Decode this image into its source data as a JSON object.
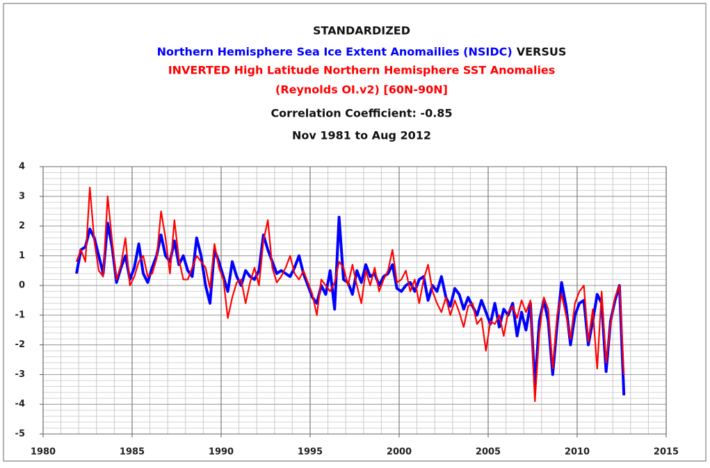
{
  "chart_data": {
    "type": "line",
    "title": "STANDARDIZED",
    "title_suffix": "VERSUS",
    "title_line": "(Reynolds OI.v2) [60N-90N]",
    "annotation": "Correlation Coefficient:  -0.85",
    "subtitle": "Nov 1981 to Aug 2012",
    "xlim": [
      1980,
      2015
    ],
    "xticks": [
      1980,
      1985,
      1990,
      1995,
      2000,
      2005,
      2010,
      2015
    ],
    "ylim": [
      -5,
      4
    ],
    "yticks": [
      -5,
      -4,
      -3,
      -2,
      -1,
      0,
      1,
      2,
      3,
      4
    ],
    "grid": true,
    "x": [
      1981.875,
      1982.125,
      1982.375,
      1982.625,
      1982.875,
      1983.125,
      1983.375,
      1983.625,
      1983.875,
      1984.125,
      1984.375,
      1984.625,
      1984.875,
      1985.125,
      1985.375,
      1985.625,
      1985.875,
      1986.125,
      1986.375,
      1986.625,
      1986.875,
      1987.125,
      1987.375,
      1987.625,
      1987.875,
      1988.125,
      1988.375,
      1988.625,
      1988.875,
      1989.125,
      1989.375,
      1989.625,
      1989.875,
      1990.125,
      1990.375,
      1990.625,
      1990.875,
      1991.125,
      1991.375,
      1991.625,
      1991.875,
      1992.125,
      1992.375,
      1992.625,
      1992.875,
      1993.125,
      1993.375,
      1993.625,
      1993.875,
      1994.125,
      1994.375,
      1994.625,
      1994.875,
      1995.125,
      1995.375,
      1995.625,
      1995.875,
      1996.125,
      1996.375,
      1996.625,
      1996.875,
      1997.125,
      1997.375,
      1997.625,
      1997.875,
      1998.125,
      1998.375,
      1998.625,
      1998.875,
      1999.125,
      1999.375,
      1999.625,
      1999.875,
      2000.125,
      2000.375,
      2000.625,
      2000.875,
      2001.125,
      2001.375,
      2001.625,
      2001.875,
      2002.125,
      2002.375,
      2002.625,
      2002.875,
      2003.125,
      2003.375,
      2003.625,
      2003.875,
      2004.125,
      2004.375,
      2004.625,
      2004.875,
      2005.125,
      2005.375,
      2005.625,
      2005.875,
      2006.125,
      2006.375,
      2006.625,
      2006.875,
      2007.125,
      2007.375,
      2007.625,
      2007.875,
      2008.125,
      2008.375,
      2008.625,
      2008.875,
      2009.125,
      2009.375,
      2009.625,
      2009.875,
      2010.125,
      2010.375,
      2010.625,
      2010.875,
      2011.125,
      2011.375,
      2011.625,
      2011.875,
      2012.125,
      2012.375,
      2012.625
    ],
    "series": [
      {
        "name": "Northern Hemisphere Sea Ice Extent Anomailies (NSIDC)",
        "color": "#0000ff",
        "values": [
          0.4,
          1.2,
          1.3,
          1.9,
          1.6,
          1.0,
          0.4,
          2.1,
          1.3,
          0.1,
          0.6,
          1.0,
          0.2,
          0.6,
          1.4,
          0.4,
          0.1,
          0.6,
          1.0,
          1.7,
          1.0,
          0.8,
          1.5,
          0.7,
          1.0,
          0.5,
          0.3,
          1.6,
          1.0,
          0.0,
          -0.6,
          1.2,
          0.8,
          0.3,
          -0.2,
          0.8,
          0.3,
          0.0,
          0.5,
          0.3,
          0.2,
          0.5,
          1.7,
          1.2,
          0.8,
          0.4,
          0.5,
          0.4,
          0.3,
          0.6,
          1.0,
          0.4,
          0.0,
          -0.4,
          -0.6,
          0.0,
          -0.3,
          0.5,
          -0.8,
          2.3,
          0.2,
          0.1,
          -0.3,
          0.5,
          0.1,
          0.7,
          0.3,
          0.4,
          0.0,
          0.3,
          0.4,
          0.7,
          -0.1,
          -0.2,
          0.0,
          0.1,
          -0.2,
          0.2,
          0.3,
          -0.5,
          0.0,
          -0.2,
          0.3,
          -0.4,
          -0.7,
          -0.1,
          -0.3,
          -0.8,
          -0.4,
          -0.7,
          -1.0,
          -0.5,
          -0.9,
          -1.3,
          -0.6,
          -1.4,
          -0.8,
          -1.0,
          -0.6,
          -1.7,
          -0.9,
          -1.5,
          -0.6,
          -3.4,
          -1.2,
          -0.5,
          -1.2,
          -3.0,
          -1.3,
          0.1,
          -0.7,
          -2.0,
          -1.0,
          -0.6,
          -0.5,
          -2.0,
          -1.2,
          -0.3,
          -0.6,
          -2.9,
          -1.2,
          -0.5,
          0.0,
          -3.7
        ]
      },
      {
        "name": "INVERTED High Latitude Northern Hemisphere SST Anomalies",
        "color": "#ff0000",
        "values": [
          0.8,
          1.2,
          0.8,
          3.3,
          1.5,
          0.5,
          0.3,
          3.0,
          1.5,
          0.2,
          0.7,
          1.6,
          0.0,
          0.3,
          0.8,
          1.0,
          0.3,
          0.4,
          0.9,
          2.5,
          1.6,
          0.4,
          2.2,
          0.9,
          0.2,
          0.2,
          0.6,
          1.0,
          0.8,
          0.6,
          -0.1,
          1.4,
          0.6,
          0.2,
          -1.1,
          -0.4,
          0.1,
          0.2,
          -0.6,
          0.1,
          0.6,
          0.0,
          1.5,
          2.2,
          0.6,
          0.1,
          0.3,
          0.6,
          1.0,
          0.4,
          0.2,
          0.5,
          0.1,
          -0.3,
          -1.0,
          0.2,
          0.0,
          -0.2,
          0.1,
          0.8,
          0.6,
          0.0,
          0.7,
          0.0,
          -0.6,
          0.5,
          0.0,
          0.6,
          -0.2,
          0.2,
          0.5,
          1.2,
          0.1,
          0.2,
          0.5,
          -0.2,
          0.2,
          -0.6,
          0.2,
          0.7,
          -0.2,
          -0.6,
          -0.9,
          -0.4,
          -1.0,
          -0.5,
          -0.9,
          -1.4,
          -0.7,
          -0.6,
          -1.3,
          -1.1,
          -2.2,
          -1.2,
          -1.3,
          -1.0,
          -1.7,
          -0.9,
          -0.7,
          -1.1,
          -0.5,
          -0.9,
          -0.5,
          -3.9,
          -1.6,
          -0.4,
          -0.8,
          -2.8,
          -1.0,
          -0.3,
          -1.0,
          -1.8,
          -0.6,
          -0.2,
          0.0,
          -1.9,
          -0.8,
          -2.8,
          -0.2,
          -2.6,
          -1.3,
          -0.4,
          0.0,
          -3.0
        ]
      }
    ]
  }
}
